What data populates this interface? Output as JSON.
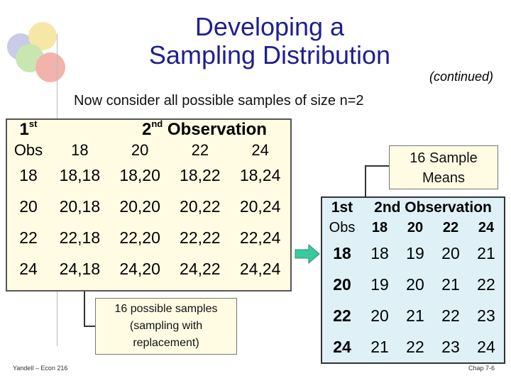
{
  "slide": {
    "title_line1": "Developing a",
    "title_line2": "Sampling Distribution",
    "continued": "(continued)",
    "subtitle": "Now consider all possible samples of size n=2"
  },
  "left_table": {
    "header_first": "1",
    "header_first_sup": "st",
    "header_second": "2",
    "header_second_sup": "nd",
    "header_observation": " Observation",
    "obs_label": "Obs",
    "columns": [
      "18",
      "20",
      "22",
      "24"
    ],
    "rows": [
      {
        "obs": "18",
        "cells": [
          "18,18",
          "18,20",
          "18,22",
          "18,24"
        ]
      },
      {
        "obs": "20",
        "cells": [
          "20,18",
          "20,20",
          "20,22",
          "20,24"
        ]
      },
      {
        "obs": "22",
        "cells": [
          "22,18",
          "22,20",
          "22,22",
          "22,24"
        ]
      },
      {
        "obs": "24",
        "cells": [
          "24,18",
          "24,20",
          "24,22",
          "24,24"
        ]
      }
    ]
  },
  "callout_means": {
    "line1": "16 Sample",
    "line2": "Means"
  },
  "callout_samples": {
    "line1": "16 possible samples",
    "line2": "(sampling with",
    "line3": "replacement)"
  },
  "right_table": {
    "header_first": "1st",
    "header_second": "2nd Observation",
    "obs_label": "Obs",
    "columns": [
      "18",
      "20",
      "22",
      "24"
    ],
    "rows": [
      {
        "obs": "18",
        "cells": [
          "18",
          "19",
          "20",
          "21"
        ]
      },
      {
        "obs": "20",
        "cells": [
          "19",
          "20",
          "21",
          "22"
        ]
      },
      {
        "obs": "22",
        "cells": [
          "20",
          "21",
          "22",
          "23"
        ]
      },
      {
        "obs": "24",
        "cells": [
          "21",
          "22",
          "23",
          "24"
        ]
      }
    ]
  },
  "footer": {
    "left": "Yandell – Econ 216",
    "right": "Chap 7-6"
  },
  "colors": {
    "title": "#1f1f8f",
    "left_table_bg": "#fffce3",
    "right_table_bg": "#dff1f7",
    "arrow": "#3cc8a0"
  }
}
